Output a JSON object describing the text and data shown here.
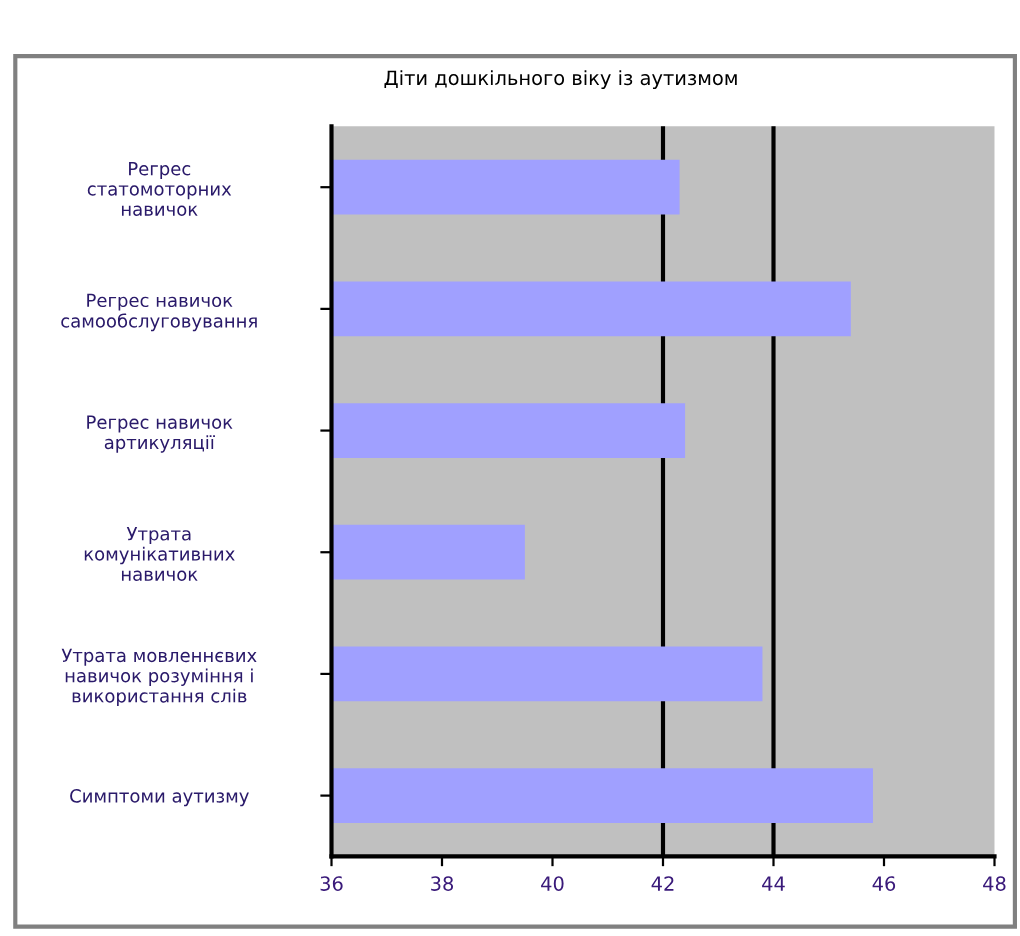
{
  "chart_data": {
    "type": "bar",
    "orientation": "horizontal",
    "title": "Діти дошкільного віку із аутизмом",
    "categories": [
      "Регрес\nстатомоторних\nнавичок",
      "Регрес навичок\nсамообслуговування",
      "Регрес навичок\nартикуляції",
      "Утрата\nкомунікативних\nнавичок",
      "Утрата мовленнєвих\nнавичок розуміння і\nвикористання слів",
      "Симптоми аутизму"
    ],
    "values": [
      42.3,
      45.4,
      42.4,
      39.5,
      43.8,
      45.8
    ],
    "color": "#a0a0ff",
    "xlim": [
      36,
      48
    ],
    "xticks": [
      36,
      38,
      40,
      42,
      44,
      46,
      48
    ],
    "ref_lines": [
      {
        "axis": "x",
        "value": 42,
        "color": "#000000"
      },
      {
        "axis": "x",
        "value": 44,
        "color": "#000000"
      }
    ],
    "grid": false
  }
}
